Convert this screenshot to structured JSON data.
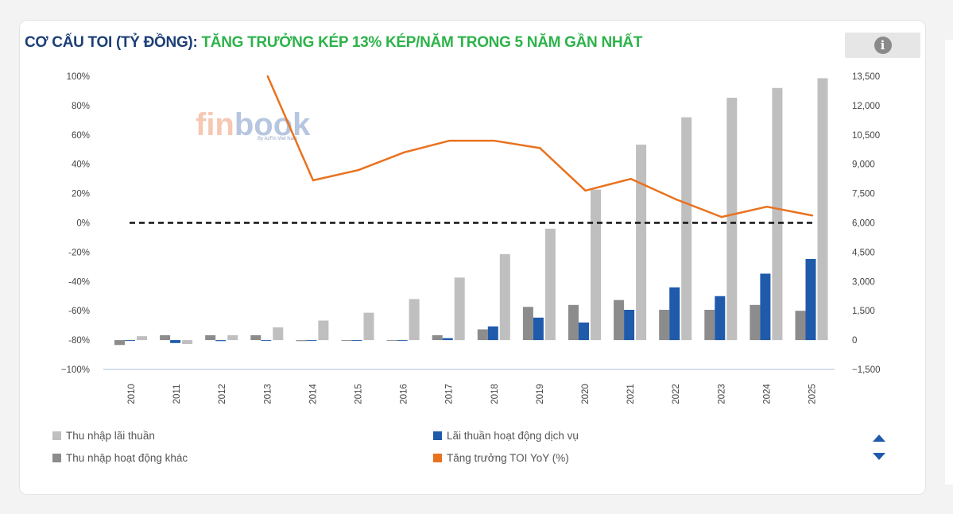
{
  "title": {
    "part1": "CƠ CẤU TOI (TỶ ĐỒNG):",
    "part2": "TĂNG TRƯỞNG KÉP 13% KÉP/NĂM TRONG 5 NĂM GẦN NHẤT"
  },
  "info_icon_label": "i",
  "watermark": {
    "brand": "finbook",
    "tagline": "By AzFin Viet Nam"
  },
  "colors": {
    "title_dark": "#1c3f77",
    "title_green": "#2db34a",
    "net_interest": "#bfbfbf",
    "service": "#1f5aab",
    "other": "#8c8c8c",
    "growth": "#e9721f"
  },
  "legend": [
    {
      "label": "Thu nhập lãi thuần",
      "color": "#bfbfbf"
    },
    {
      "label": "Lãi thuần hoạt động dịch vụ",
      "color": "#1f5aab"
    },
    {
      "label": "Thu nhập hoạt động khác",
      "color": "#8c8c8c"
    },
    {
      "label": "Tăng trưởng TOI YoY (%)",
      "color": "#e9721f"
    }
  ],
  "chart_data": {
    "type": "bar",
    "categories": [
      "2010",
      "2011",
      "2012",
      "2013",
      "2014",
      "2015",
      "2016",
      "2017",
      "2018",
      "2019",
      "2020",
      "2021",
      "2022",
      "2023",
      "2024",
      "2025"
    ],
    "left_axis": {
      "ticks": [
        "100%",
        "80%",
        "60%",
        "40%",
        "20%",
        "0%",
        "-20%",
        "-40%",
        "-60%",
        "-80%",
        "−100%"
      ],
      "range": [
        -100,
        100
      ]
    },
    "right_axis": {
      "ticks": [
        "13,500",
        "12,000",
        "10,500",
        "9,000",
        "7,500",
        "6,000",
        "4,500",
        "3,000",
        "1,500",
        "0",
        "−1,500"
      ],
      "range": [
        -1500,
        13500
      ]
    },
    "series": [
      {
        "name": "Thu nhập hoạt động khác",
        "axis": "right",
        "values": [
          -250,
          250,
          250,
          250,
          -50,
          0,
          0,
          250,
          550,
          1700,
          1800,
          2050,
          1550,
          1550,
          1800,
          1500
        ]
      },
      {
        "name": "Thu nhập lãi thuần",
        "axis": "right",
        "values": [
          200,
          -200,
          250,
          650,
          1000,
          1400,
          2100,
          3200,
          4400,
          5700,
          7700,
          10000,
          11400,
          12400,
          12900,
          13400
        ]
      },
      {
        "name": "Lãi thuần hoạt động dịch vụ",
        "axis": "right",
        "values": [
          0,
          -150,
          -50,
          0,
          0,
          0,
          0,
          100,
          700,
          1150,
          900,
          1550,
          2700,
          2250,
          3400,
          4150
        ]
      },
      {
        "name": "Tăng trưởng TOI YoY (%)",
        "axis": "left",
        "type": "line",
        "values": [
          null,
          null,
          null,
          100,
          29,
          36,
          48,
          56,
          56,
          51,
          22,
          30,
          16,
          4,
          11,
          5
        ]
      }
    ],
    "reference_line": {
      "axis": "left",
      "value": 0,
      "style": "dashed"
    },
    "grid": false,
    "legend_position": "bottom"
  }
}
